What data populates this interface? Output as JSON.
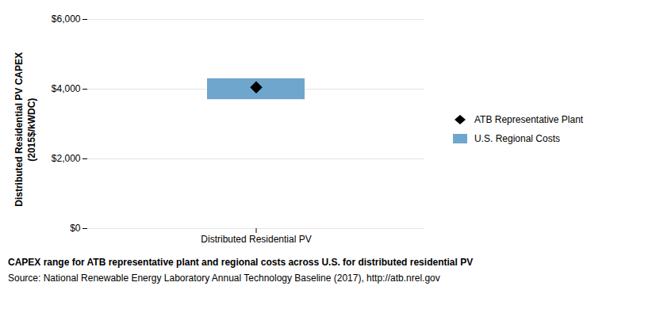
{
  "chart_data": {
    "type": "range",
    "categories": [
      "Distributed Residential PV"
    ],
    "ylabel": "Distributed Residential PV CAPEX\n(2015$/kWDC)",
    "series": [
      {
        "name": "ATB Representative Plant",
        "type": "scatter",
        "marker": "diamond",
        "color": "#000000",
        "values": [
          4050
        ]
      },
      {
        "name": "U.S. Regional Costs",
        "type": "range",
        "color": "#6EA6CD",
        "low": [
          3700
        ],
        "high": [
          4300
        ]
      }
    ],
    "ylim": [
      0,
      6000
    ],
    "yticks": [
      {
        "value": 0,
        "label": "$0"
      },
      {
        "value": 2000,
        "label": "$2,000"
      },
      {
        "value": 4000,
        "label": "$4,000"
      },
      {
        "value": 6000,
        "label": "$6,000"
      }
    ],
    "grid": true,
    "legend": "right",
    "caption": "CAPEX range for ATB representative plant and regional costs across U.S. for distributed residential PV",
    "source": "Source: National Renewable Energy Laboratory Annual Technology Baseline (2017), http://atb.nrel.gov"
  }
}
